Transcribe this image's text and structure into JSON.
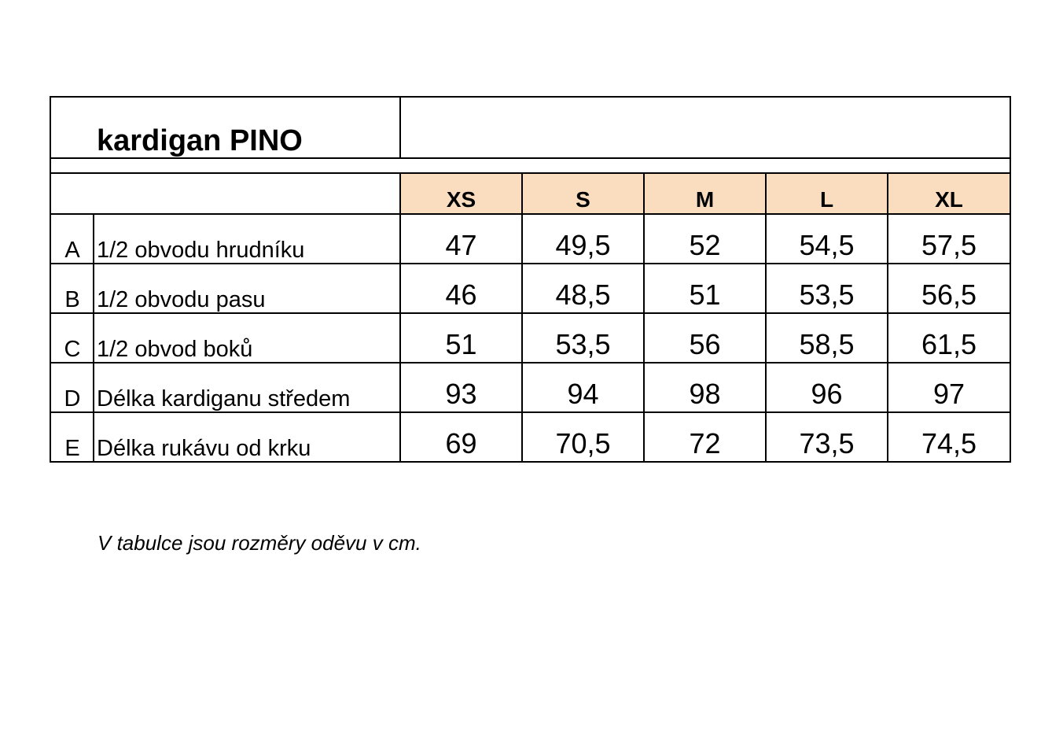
{
  "title": "kardigan PINO",
  "table": {
    "header": [
      "XS",
      "S",
      "M",
      "L",
      "XL"
    ],
    "rows": [
      {
        "letter": "A",
        "label": "1/2 obvodu hrudníku",
        "values": [
          "47",
          "49,5",
          "52",
          "54,5",
          "57,5"
        ]
      },
      {
        "letter": "B",
        "label": "1/2 obvodu pasu",
        "values": [
          "46",
          "48,5",
          "51",
          "53,5",
          "56,5"
        ]
      },
      {
        "letter": "C",
        "label": "1/2 obvod boků",
        "values": [
          "51",
          "53,5",
          "56",
          "58,5",
          "61,5"
        ]
      },
      {
        "letter": "D",
        "label": "Délka kardiganu středem",
        "values": [
          "93",
          "94",
          "98",
          "96",
          "97"
        ]
      },
      {
        "letter": "E",
        "label": "Délka rukávu od krku",
        "values": [
          "69",
          "70,5",
          "72",
          "73,5",
          "74,5"
        ]
      }
    ]
  },
  "note": "V tabulce jsou rozměry oděvu v cm."
}
